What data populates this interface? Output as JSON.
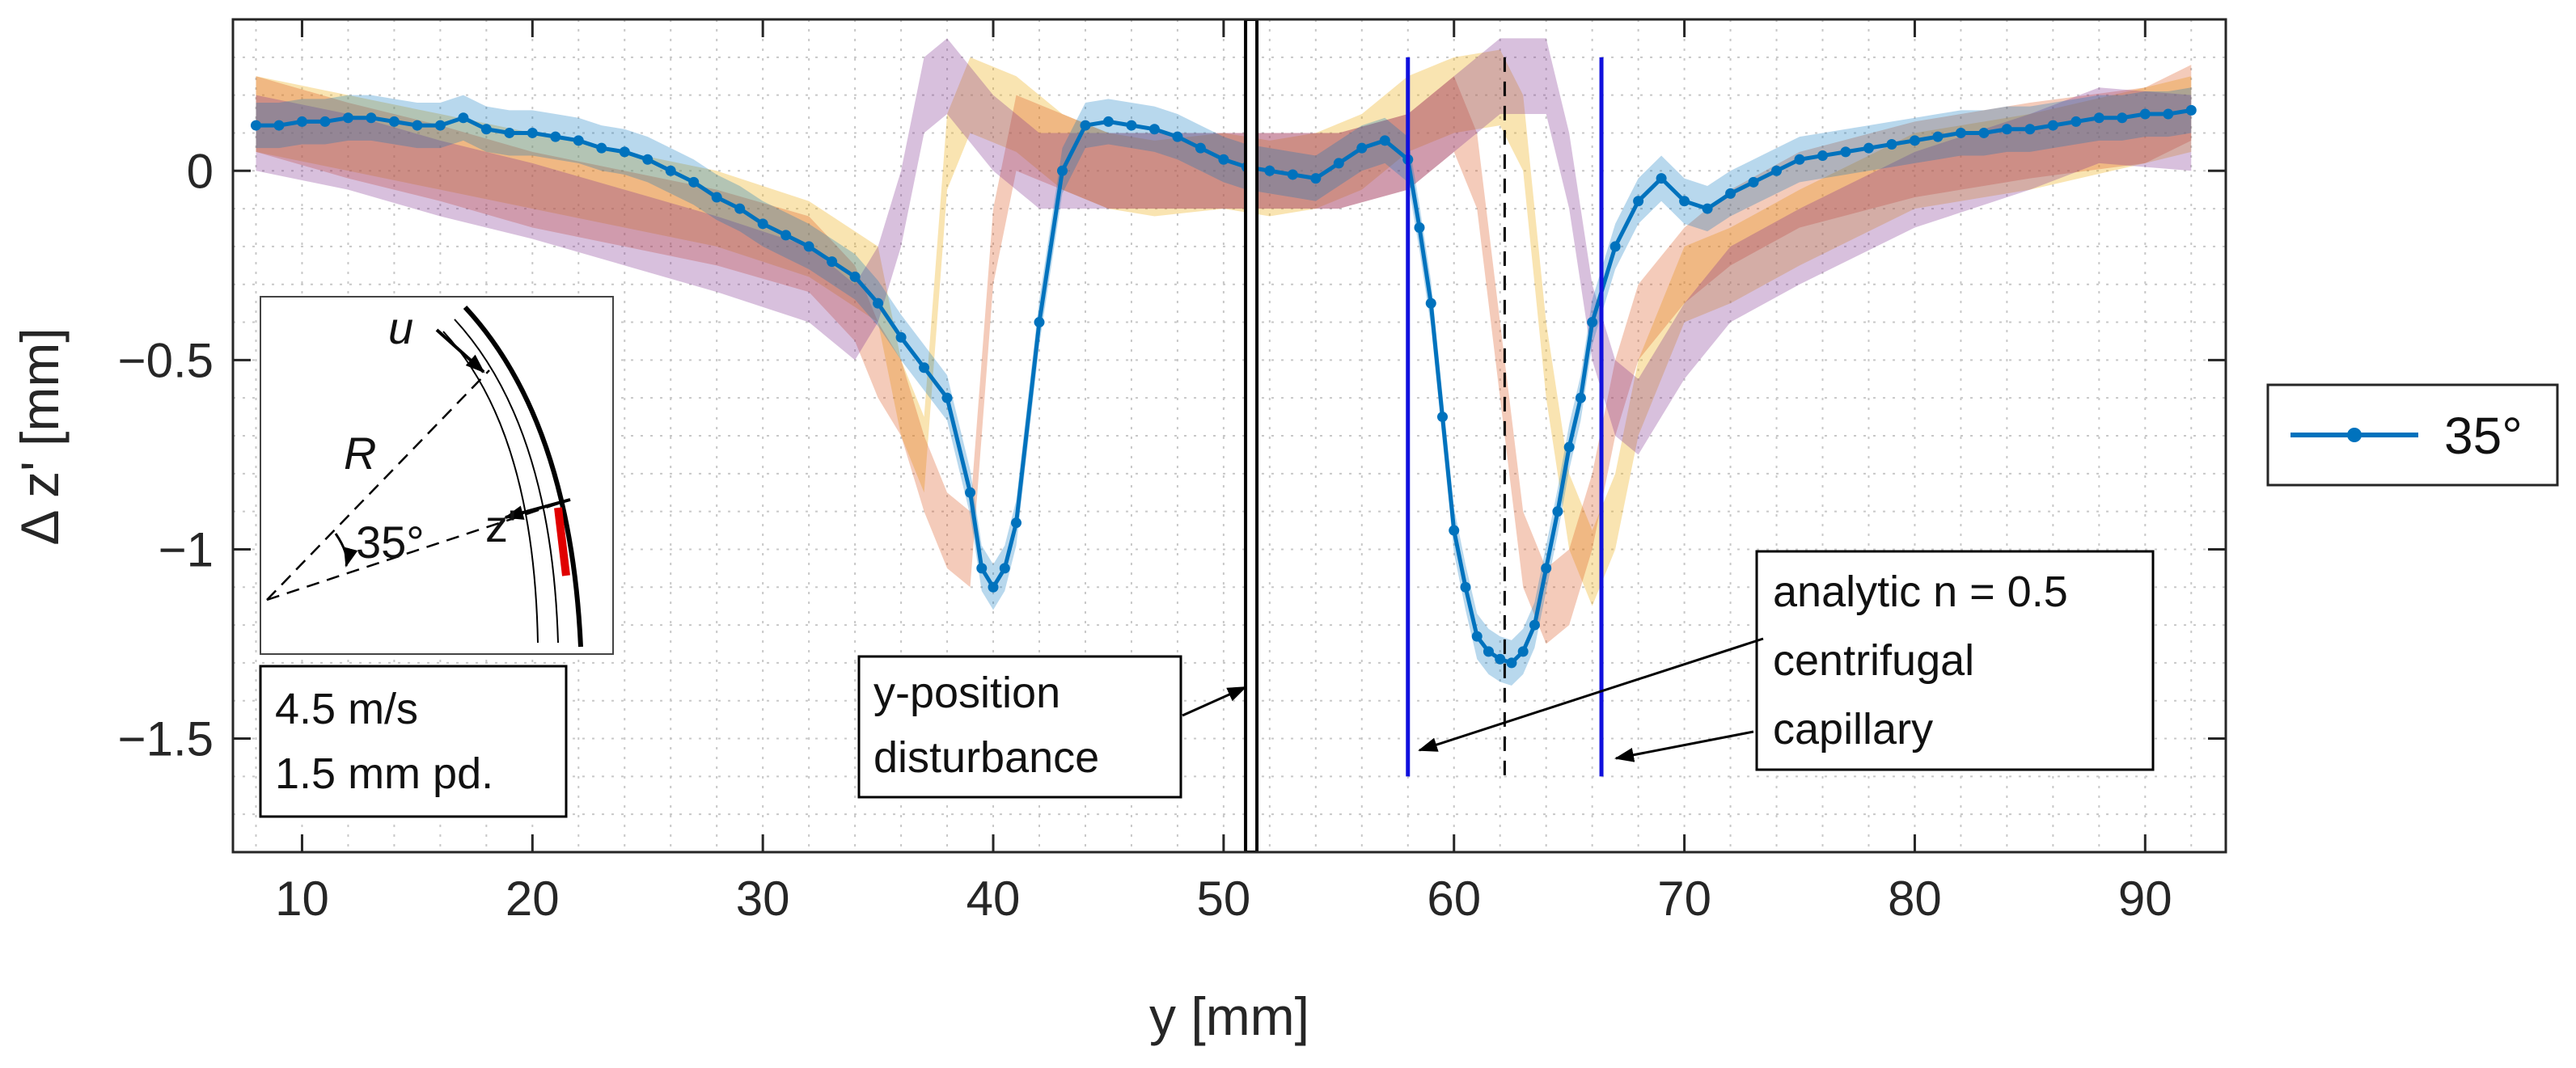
{
  "chart_data": {
    "type": "line",
    "title": "",
    "xlabel": "y [mm]",
    "ylabel": "Δ z' [mm]",
    "xlim": [
      7,
      93.5
    ],
    "ylim": [
      -1.8,
      0.4
    ],
    "xticks": [
      10,
      20,
      30,
      40,
      50,
      60,
      70,
      80,
      90
    ],
    "xtick_labels": [
      "10",
      "20",
      "30",
      "40",
      "50",
      "60",
      "70",
      "80",
      "90"
    ],
    "yticks": [
      0,
      -0.5,
      -1,
      -1.5
    ],
    "ytick_labels": [
      "0",
      "−0.5",
      "−1",
      "−1.5"
    ],
    "grid": "dotted minor",
    "legend": {
      "position": "right",
      "entries": [
        "35°"
      ]
    },
    "series": [
      {
        "name": "35°",
        "color": "#0072BD",
        "marker": "dot",
        "band_width": 0.06,
        "x": [
          8,
          9,
          10,
          11,
          12,
          13,
          14,
          15,
          16,
          17,
          18,
          19,
          20,
          21,
          22,
          23,
          24,
          25,
          26,
          27,
          28,
          29,
          30,
          31,
          32,
          33,
          34,
          35,
          36,
          37,
          38,
          39,
          39.5,
          40,
          40.5,
          41,
          42,
          43,
          44,
          45,
          46,
          47,
          48,
          49,
          50,
          51,
          52,
          53,
          54,
          55,
          56,
          57,
          58,
          58.5,
          59,
          59.5,
          60,
          60.5,
          61,
          61.5,
          62,
          62.5,
          63,
          63.5,
          64,
          64.5,
          65,
          65.5,
          66,
          67,
          68,
          69,
          70,
          71,
          72,
          73,
          74,
          75,
          76,
          77,
          78,
          79,
          80,
          81,
          82,
          83,
          84,
          85,
          86,
          87,
          88,
          89,
          90,
          91,
          92
        ],
        "y": [
          0.12,
          0.12,
          0.13,
          0.13,
          0.14,
          0.14,
          0.13,
          0.12,
          0.12,
          0.14,
          0.11,
          0.1,
          0.1,
          0.09,
          0.08,
          0.06,
          0.05,
          0.03,
          0.0,
          -0.03,
          -0.07,
          -0.1,
          -0.14,
          -0.17,
          -0.2,
          -0.24,
          -0.28,
          -0.35,
          -0.44,
          -0.52,
          -0.6,
          -0.85,
          -1.05,
          -1.1,
          -1.05,
          -0.93,
          -0.4,
          0.0,
          0.12,
          0.13,
          0.12,
          0.11,
          0.09,
          0.06,
          0.03,
          0.01,
          0.0,
          -0.01,
          -0.02,
          0.02,
          0.06,
          0.08,
          0.03,
          -0.15,
          -0.35,
          -0.65,
          -0.95,
          -1.1,
          -1.23,
          -1.27,
          -1.29,
          -1.3,
          -1.27,
          -1.2,
          -1.05,
          -0.9,
          -0.73,
          -0.6,
          -0.4,
          -0.2,
          -0.08,
          -0.02,
          -0.08,
          -0.1,
          -0.06,
          -0.03,
          0.0,
          0.03,
          0.04,
          0.05,
          0.06,
          0.07,
          0.08,
          0.09,
          0.1,
          0.1,
          0.11,
          0.11,
          0.12,
          0.13,
          0.14,
          0.14,
          0.15,
          0.15,
          0.16
        ]
      },
      {
        "name": "",
        "color": "#EDB120",
        "opacity": 0.35,
        "band_width": 0.1,
        "x": [
          8,
          12,
          16,
          20,
          24,
          28,
          32,
          35,
          36,
          37,
          38,
          39,
          41,
          43,
          45,
          47,
          50,
          52,
          54,
          56,
          58,
          60,
          62,
          63,
          64,
          65,
          66,
          67,
          68,
          70,
          72,
          75,
          80,
          85,
          90,
          92
        ],
        "y": [
          0.15,
          0.1,
          0.05,
          0.0,
          -0.05,
          -0.1,
          -0.18,
          -0.3,
          -0.6,
          -0.75,
          0.05,
          0.2,
          0.15,
          0.05,
          0.0,
          -0.02,
          0.0,
          -0.02,
          0.0,
          0.05,
          0.15,
          0.2,
          0.22,
          0.1,
          -0.5,
          -0.9,
          -1.05,
          -0.9,
          -0.6,
          -0.3,
          -0.25,
          -0.15,
          0.0,
          0.05,
          0.12,
          0.15
        ]
      },
      {
        "name": "",
        "color": "#D95319",
        "opacity": 0.3,
        "band_width": 0.1,
        "x": [
          8,
          12,
          16,
          20,
          24,
          28,
          32,
          34,
          35,
          36,
          37,
          38,
          39,
          40,
          41,
          43,
          45,
          50,
          55,
          58,
          60,
          61,
          62,
          63,
          64,
          65,
          66,
          67,
          68,
          70,
          72,
          75,
          80,
          85,
          90,
          92
        ],
        "y": [
          0.15,
          0.08,
          0.02,
          -0.05,
          -0.1,
          -0.15,
          -0.22,
          -0.35,
          -0.5,
          -0.6,
          -0.8,
          -0.95,
          -1.0,
          -0.2,
          0.1,
          0.05,
          0.0,
          0.0,
          0.0,
          0.05,
          0.15,
          0.0,
          -0.5,
          -1.0,
          -1.15,
          -1.1,
          -0.9,
          -0.6,
          -0.4,
          -0.25,
          -0.15,
          -0.05,
          0.03,
          0.08,
          0.12,
          0.18
        ]
      },
      {
        "name": "",
        "color": "#7E2F8E",
        "opacity": 0.3,
        "band_width": 0.1,
        "x": [
          8,
          12,
          16,
          20,
          24,
          28,
          32,
          34,
          35,
          36,
          37,
          38,
          40,
          42,
          45,
          50,
          55,
          58,
          60,
          62,
          64,
          65,
          66,
          67,
          68,
          70,
          72,
          75,
          80,
          85,
          88,
          92
        ],
        "y": [
          0.1,
          0.05,
          -0.02,
          -0.08,
          -0.15,
          -0.22,
          -0.3,
          -0.4,
          -0.3,
          -0.1,
          0.2,
          0.25,
          0.1,
          0.0,
          0.0,
          0.0,
          0.0,
          0.05,
          0.15,
          0.25,
          0.25,
          0.0,
          -0.4,
          -0.6,
          -0.65,
          -0.45,
          -0.3,
          -0.2,
          -0.05,
          0.05,
          0.12,
          0.1
        ]
      }
    ],
    "vertical_lines": [
      {
        "x": 51.2,
        "style": "double-black"
      },
      {
        "x": 58.0,
        "style": "solid-blue"
      },
      {
        "x": 62.2,
        "style": "dashed-black"
      },
      {
        "x": 66.4,
        "style": "solid-blue"
      }
    ],
    "annotations": {
      "disturbance": [
        "y-position",
        "disturbance"
      ],
      "analytic": [
        "analytic n = 0.5",
        "centrifugal",
        "capillary"
      ],
      "conditions": [
        "4.5 m/s",
        "1.5 mm pd."
      ],
      "inset": {
        "velocity": "u",
        "radius": "R",
        "angle": "35°",
        "axis": "z'"
      }
    }
  }
}
